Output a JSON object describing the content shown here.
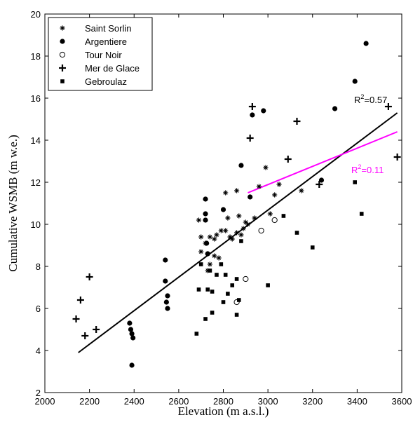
{
  "chart_data": {
    "type": "scatter",
    "xlabel": "Elevation (m a.s.l.)",
    "ylabel": "Cumulative WSMB (m w.e.)",
    "xlim": [
      2000,
      3600
    ],
    "ylim": [
      2,
      20
    ],
    "xticks": [
      2000,
      2200,
      2400,
      2600,
      2800,
      3000,
      3200,
      3400,
      3600
    ],
    "yticks": [
      2,
      4,
      6,
      8,
      10,
      12,
      14,
      16,
      18,
      20
    ],
    "grid": false,
    "legend_position": "top-left",
    "series": [
      {
        "name": "Saint Sorlin",
        "marker": "asterisk",
        "points": [
          [
            2690,
            10.2
          ],
          [
            2700,
            9.4
          ],
          [
            2720,
            9.1
          ],
          [
            2730,
            8.6
          ],
          [
            2740,
            9.4
          ],
          [
            2760,
            9.3
          ],
          [
            2770,
            9.5
          ],
          [
            2790,
            9.7
          ],
          [
            2810,
            9.7
          ],
          [
            2820,
            10.3
          ],
          [
            2830,
            9.4
          ],
          [
            2840,
            9.3
          ],
          [
            2860,
            9.6
          ],
          [
            2870,
            10.4
          ],
          [
            2880,
            9.5
          ],
          [
            2890,
            9.8
          ],
          [
            2900,
            10.1
          ],
          [
            2910,
            10.0
          ],
          [
            2940,
            10.3
          ],
          [
            2960,
            11.8
          ],
          [
            2990,
            12.7
          ],
          [
            3010,
            10.5
          ],
          [
            3030,
            11.4
          ],
          [
            3050,
            11.9
          ],
          [
            3150,
            11.6
          ],
          [
            2810,
            11.5
          ],
          [
            2860,
            11.6
          ],
          [
            2700,
            8.7
          ],
          [
            2740,
            8.1
          ],
          [
            2760,
            8.5
          ],
          [
            2780,
            8.4
          ],
          [
            2730,
            7.8
          ]
        ]
      },
      {
        "name": "Argentiere",
        "marker": "filled-circle",
        "points": [
          [
            2390,
            3.3
          ],
          [
            2380,
            5.3
          ],
          [
            2385,
            5.0
          ],
          [
            2390,
            4.8
          ],
          [
            2395,
            4.6
          ],
          [
            2540,
            8.3
          ],
          [
            2540,
            7.3
          ],
          [
            2545,
            6.3
          ],
          [
            2550,
            6.6
          ],
          [
            2550,
            6.0
          ],
          [
            2720,
            11.2
          ],
          [
            2720,
            10.5
          ],
          [
            2720,
            10.2
          ],
          [
            2725,
            9.1
          ],
          [
            2730,
            8.6
          ],
          [
            2800,
            10.7
          ],
          [
            2880,
            12.8
          ],
          [
            2920,
            11.3
          ],
          [
            2930,
            15.2
          ],
          [
            2980,
            15.4
          ],
          [
            3240,
            12.1
          ],
          [
            3300,
            15.5
          ],
          [
            3390,
            16.8
          ],
          [
            3440,
            18.6
          ]
        ]
      },
      {
        "name": "Tour Noir",
        "marker": "open-circle",
        "points": [
          [
            2860,
            6.3
          ],
          [
            2900,
            7.4
          ],
          [
            2970,
            9.7
          ],
          [
            3030,
            10.2
          ]
        ]
      },
      {
        "name": "Mer de Glace",
        "marker": "plus",
        "points": [
          [
            2140,
            5.5
          ],
          [
            2160,
            6.4
          ],
          [
            2180,
            4.7
          ],
          [
            2200,
            7.5
          ],
          [
            2230,
            5.0
          ],
          [
            2920,
            14.1
          ],
          [
            2930,
            15.6
          ],
          [
            3090,
            13.1
          ],
          [
            3130,
            14.9
          ],
          [
            3230,
            11.9
          ],
          [
            3540,
            15.6
          ],
          [
            3580,
            13.2
          ]
        ]
      },
      {
        "name": "Gebroulaz",
        "marker": "square",
        "points": [
          [
            2680,
            4.8
          ],
          [
            2690,
            6.9
          ],
          [
            2700,
            8.1
          ],
          [
            2720,
            5.5
          ],
          [
            2730,
            6.9
          ],
          [
            2740,
            7.8
          ],
          [
            2750,
            5.8
          ],
          [
            2750,
            6.8
          ],
          [
            2770,
            7.6
          ],
          [
            2790,
            8.1
          ],
          [
            2800,
            6.3
          ],
          [
            2810,
            7.6
          ],
          [
            2820,
            6.7
          ],
          [
            2840,
            7.1
          ],
          [
            2860,
            5.7
          ],
          [
            2860,
            7.4
          ],
          [
            2880,
            9.2
          ],
          [
            2870,
            6.4
          ],
          [
            3000,
            7.1
          ],
          [
            3070,
            10.4
          ],
          [
            3130,
            9.6
          ],
          [
            3200,
            8.9
          ],
          [
            3390,
            12.0
          ],
          [
            3420,
            10.5
          ]
        ]
      }
    ],
    "trend_lines": [
      {
        "label": "R",
        "exp": "2",
        "value": "=0.57",
        "color": "#000000",
        "x": [
          2150,
          3580
        ],
        "y": [
          3.9,
          15.3
        ]
      },
      {
        "label": "R",
        "exp": "2",
        "value": "=0.11",
        "color": "#ff00ff",
        "x": [
          2910,
          3580
        ],
        "y": [
          11.5,
          14.4
        ]
      }
    ]
  }
}
